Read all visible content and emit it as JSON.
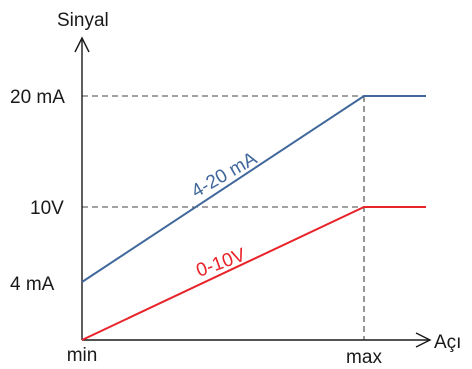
{
  "chart_data": {
    "type": "line",
    "ylabel": "Sinyal",
    "xlabel": "Açı",
    "x_ticks": [
      "min",
      "max"
    ],
    "y_ticks": [
      {
        "label": "4 mA",
        "value": 4
      },
      {
        "label": "10V",
        "value": 10
      },
      {
        "label": "20 mA",
        "value": 20
      }
    ],
    "ylim": [
      0,
      20
    ],
    "series": [
      {
        "name": "4-20 mA",
        "color": "#41689c",
        "x": [
          "min",
          "max",
          "beyond max"
        ],
        "y": [
          4,
          20,
          20
        ]
      },
      {
        "name": "0-10V",
        "color": "#e8232a",
        "x": [
          "min",
          "max",
          "beyond max"
        ],
        "y": [
          0,
          10,
          10
        ]
      }
    ],
    "guides": "dashed lines from 20 mA and 10V levels to max"
  }
}
